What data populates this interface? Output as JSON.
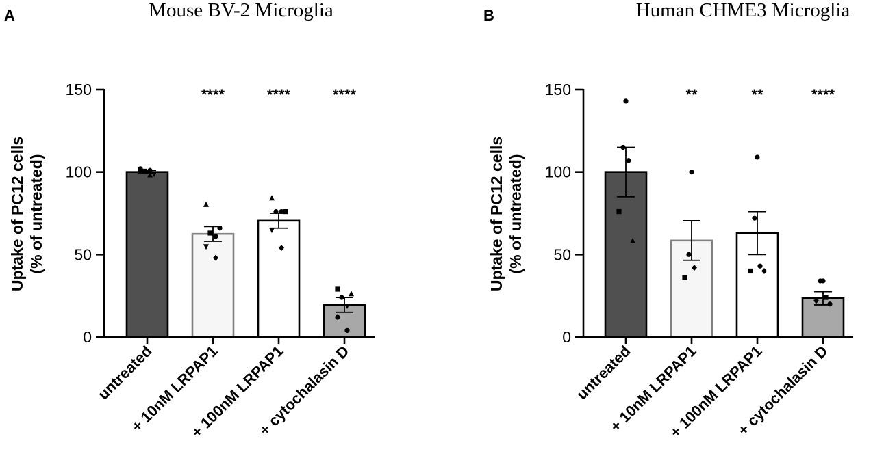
{
  "colors": {
    "axis": "#000000",
    "bar_fills": [
      "#505050",
      "#f6f6f6",
      "#ffffff",
      "#a8a8a8"
    ],
    "bar_strokes": [
      "#000000",
      "#808080",
      "#000000",
      "#000000"
    ],
    "points": "#000000"
  },
  "chart_data": [
    {
      "type": "bar",
      "panel_label": "A",
      "title": "Mouse BV-2 Microglia",
      "ylabel": "Uptake of PC12 cells",
      "ylabel_sub": "(% of untreated)",
      "xlabel": "",
      "ylim": [
        0,
        150
      ],
      "yticks": [
        "0",
        "50",
        "100",
        "150"
      ],
      "ytick_values": [
        0,
        50,
        100,
        150
      ],
      "categories": [
        "untreated",
        "+ 10nM LRPAP1",
        "+ 100nM LRPAP1",
        "+ cytochalasin D"
      ],
      "values": [
        100,
        62.5,
        70.5,
        19.5
      ],
      "sem": [
        1,
        4.5,
        4.5,
        4.5
      ],
      "significance": [
        "",
        "****",
        "****",
        "****"
      ],
      "points": [
        [
          {
            "y": 101,
            "m": "tri"
          },
          {
            "y": 99,
            "m": "tri-down"
          },
          {
            "y": 100.5,
            "m": "sq"
          },
          {
            "y": 101,
            "m": "circ"
          },
          {
            "y": 102,
            "m": "circ"
          },
          {
            "y": 98,
            "m": "tri"
          }
        ],
        [
          {
            "y": 80,
            "m": "tri"
          },
          {
            "y": 66,
            "m": "circ"
          },
          {
            "y": 63,
            "m": "sq"
          },
          {
            "y": 61,
            "m": "circ"
          },
          {
            "y": 55,
            "m": "tri-down"
          },
          {
            "y": 48,
            "m": "diam"
          }
        ],
        [
          {
            "y": 84,
            "m": "tri"
          },
          {
            "y": 76,
            "m": "sq"
          },
          {
            "y": 76,
            "m": "circ"
          },
          {
            "y": 76,
            "m": "circ"
          },
          {
            "y": 65,
            "m": "tri-down"
          },
          {
            "y": 54,
            "m": "diam"
          }
        ],
        [
          {
            "y": 29,
            "m": "sq"
          },
          {
            "y": 26,
            "m": "tri"
          },
          {
            "y": 24,
            "m": "circ"
          },
          {
            "y": 19,
            "m": "tri-down"
          },
          {
            "y": 12,
            "m": "circ"
          },
          {
            "y": 4,
            "m": "circ"
          }
        ]
      ]
    },
    {
      "type": "bar",
      "panel_label": "B",
      "title": "Human CHME3 Microglia",
      "ylabel": "Uptake of PC12 cells",
      "ylabel_sub": "(% of untreated)",
      "xlabel": "",
      "ylim": [
        0,
        150
      ],
      "yticks": [
        "0",
        "50",
        "100",
        "150"
      ],
      "ytick_values": [
        0,
        50,
        100,
        150
      ],
      "categories": [
        "untreated",
        "+ 10nM LRPAP1",
        "+ 100nM LRPAP1",
        "+ cytochalasin D"
      ],
      "values": [
        100,
        58.5,
        63,
        23.5
      ],
      "sem": [
        15,
        12,
        13,
        4
      ],
      "significance": [
        "",
        "**",
        "**",
        "****"
      ],
      "points": [
        [
          {
            "y": 143,
            "m": "circ"
          },
          {
            "y": 115,
            "m": "circ"
          },
          {
            "y": 107,
            "m": "circ"
          },
          {
            "y": 76,
            "m": "sq"
          },
          {
            "y": 58,
            "m": "tri"
          }
        ],
        [
          {
            "y": 100,
            "m": "circ"
          },
          {
            "y": 50,
            "m": "circ"
          },
          {
            "y": 42,
            "m": "diam"
          },
          {
            "y": 36,
            "m": "sq"
          }
        ],
        [
          {
            "y": 109,
            "m": "circ"
          },
          {
            "y": 72,
            "m": "circ"
          },
          {
            "y": 43,
            "m": "circ"
          },
          {
            "y": 40,
            "m": "sq"
          },
          {
            "y": 40,
            "m": "diam"
          }
        ],
        [
          {
            "y": 34,
            "m": "circ"
          },
          {
            "y": 34,
            "m": "circ"
          },
          {
            "y": 24,
            "m": "sq"
          },
          {
            "y": 22,
            "m": "diam"
          },
          {
            "y": 20,
            "m": "circ"
          }
        ]
      ]
    }
  ]
}
